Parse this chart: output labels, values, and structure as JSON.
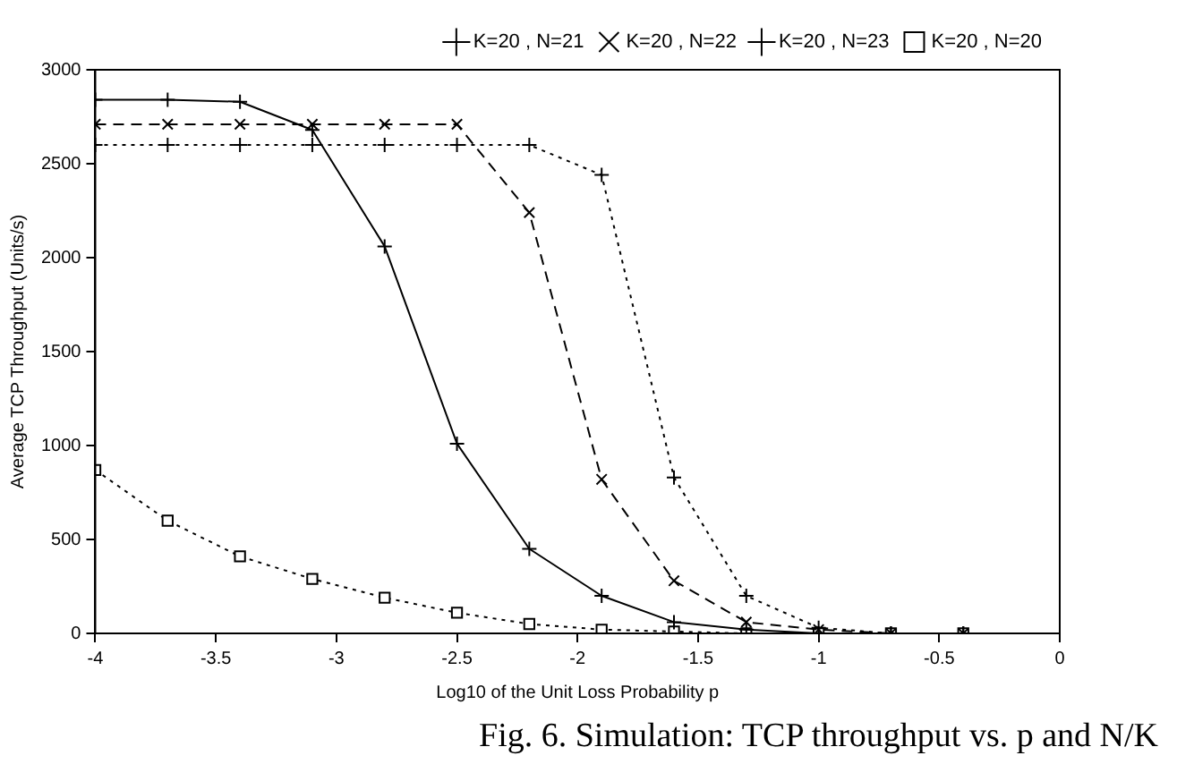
{
  "chart_data": {
    "type": "line",
    "xlabel": "Log10 of the Unit Loss Probability p",
    "ylabel": "Average TCP Throughput (Units/s)",
    "x": [
      -4,
      -3.7,
      -3.4,
      -3.1,
      -2.8,
      -2.5,
      -2.2,
      -1.9,
      -1.6,
      -1.3,
      -1,
      -0.7,
      -0.4
    ],
    "series": [
      {
        "name": "K=20 , N=21",
        "color": "#000000",
        "marker": "cross",
        "line_style": "solid",
        "values": [
          2840,
          2840,
          2830,
          2680,
          2060,
          1010,
          450,
          200,
          60,
          20,
          0,
          0,
          0
        ]
      },
      {
        "name": "K=20 , N=22",
        "color": "#000000",
        "marker": "cross",
        "line_style": "dashed",
        "values": [
          2710,
          2710,
          2710,
          2710,
          2710,
          2710,
          2240,
          820,
          280,
          60,
          20,
          0,
          0
        ]
      },
      {
        "name": "K=20 , N=23",
        "color": "#000000",
        "marker": "cross",
        "line_style": "dotted",
        "values": [
          2600,
          2600,
          2600,
          2600,
          2600,
          2600,
          2600,
          2440,
          830,
          200,
          30,
          0,
          0
        ]
      },
      {
        "name": "K=20 , N=20",
        "color": "#000000",
        "marker": "square",
        "line_style": "dotted",
        "values": [
          870,
          600,
          410,
          290,
          190,
          110,
          50,
          20,
          10,
          0,
          0,
          0,
          0
        ]
      }
    ],
    "xlim": [
      -4,
      0
    ],
    "xticks": [
      -4,
      -3.5,
      -3,
      -2.5,
      -2,
      -1.5,
      -1,
      -0.5,
      0
    ],
    "ylim": [
      0,
      3000
    ],
    "yticks": [
      0,
      500,
      1000,
      1500,
      2000,
      2500,
      3000
    ],
    "grid": false,
    "legend": "top right",
    "annotations": [
      "Fig. 6. Simulation: TCP throughput vs. p and N/K"
    ]
  }
}
